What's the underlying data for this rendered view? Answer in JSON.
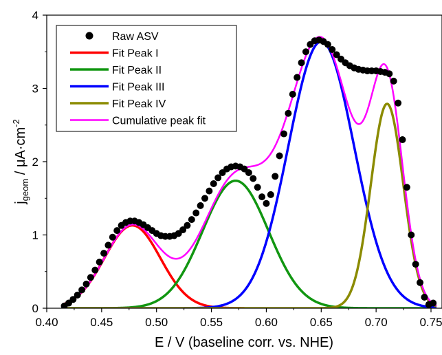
{
  "chart_data": {
    "type": "line",
    "xlabel": "E / V (baseline corr. vs. NHE)",
    "ylabel_parts": {
      "main": "j",
      "sub": "geom",
      "mid": " / μA·cm",
      "sup": "-2"
    },
    "xlim": [
      0.4,
      0.76
    ],
    "ylim": [
      0,
      4
    ],
    "x_ticks": [
      "0.40",
      "0.45",
      "0.50",
      "0.55",
      "0.60",
      "0.65",
      "0.70",
      "0.75"
    ],
    "y_ticks": [
      "0",
      "1",
      "2",
      "3",
      "4"
    ],
    "grid": false,
    "legend_position": "top-left",
    "series": [
      {
        "name": "Raw ASV",
        "kind": "scatter",
        "color": "#000000",
        "x": [
          0.416,
          0.42,
          0.424,
          0.428,
          0.432,
          0.436,
          0.44,
          0.444,
          0.448,
          0.452,
          0.456,
          0.46,
          0.464,
          0.468,
          0.472,
          0.476,
          0.48,
          0.484,
          0.488,
          0.492,
          0.496,
          0.5,
          0.504,
          0.508,
          0.512,
          0.516,
          0.52,
          0.524,
          0.528,
          0.532,
          0.536,
          0.54,
          0.544,
          0.548,
          0.552,
          0.556,
          0.56,
          0.564,
          0.568,
          0.572,
          0.576,
          0.58,
          0.584,
          0.588,
          0.592,
          0.596,
          0.6,
          0.604,
          0.608,
          0.612,
          0.616,
          0.62,
          0.624,
          0.628,
          0.632,
          0.636,
          0.64,
          0.644,
          0.648,
          0.652,
          0.656,
          0.66,
          0.664,
          0.668,
          0.672,
          0.676,
          0.68,
          0.684,
          0.688,
          0.692,
          0.696,
          0.7,
          0.704,
          0.708,
          0.712,
          0.716,
          0.72,
          0.724,
          0.728,
          0.732,
          0.736,
          0.74,
          0.744,
          0.748,
          0.752
        ],
        "y": [
          0.03,
          0.07,
          0.12,
          0.18,
          0.25,
          0.33,
          0.42,
          0.52,
          0.63,
          0.75,
          0.86,
          0.97,
          1.06,
          1.13,
          1.17,
          1.19,
          1.19,
          1.17,
          1.14,
          1.1,
          1.06,
          1.02,
          0.99,
          0.98,
          0.98,
          0.99,
          1.02,
          1.07,
          1.13,
          1.21,
          1.3,
          1.4,
          1.5,
          1.6,
          1.7,
          1.78,
          1.85,
          1.9,
          1.93,
          1.94,
          1.93,
          1.9,
          1.85,
          1.77,
          1.65,
          1.52,
          1.43,
          1.55,
          1.8,
          2.08,
          2.38,
          2.66,
          2.92,
          3.15,
          3.35,
          3.5,
          3.6,
          3.65,
          3.66,
          3.64,
          3.6,
          3.53,
          3.46,
          3.4,
          3.35,
          3.31,
          3.28,
          3.26,
          3.25,
          3.24,
          3.24,
          3.24,
          3.23,
          3.22,
          3.2,
          3.1,
          2.8,
          2.3,
          1.65,
          1.0,
          0.6,
          0.35,
          0.15,
          0.05,
          0.07
        ]
      },
      {
        "name": "Fit Peak I",
        "kind": "gaussian",
        "color": "#ff0000",
        "amp": 1.13,
        "center": 0.478,
        "sigma": 0.0255,
        "xrange": [
          0.416,
          0.58
        ]
      },
      {
        "name": "Fit Peak II",
        "kind": "gaussian",
        "color": "#119611",
        "amp": 1.74,
        "center": 0.572,
        "sigma": 0.03,
        "xrange": [
          0.416,
          0.755
        ]
      },
      {
        "name": "Fit Peak III",
        "kind": "gaussian",
        "color": "#0000ff",
        "amp": 3.64,
        "center": 0.65,
        "sigma": 0.03,
        "xrange": [
          0.416,
          0.755
        ]
      },
      {
        "name": "Fit Peak IV",
        "kind": "gaussian",
        "color": "#8b8b00",
        "amp": 2.79,
        "center": 0.71,
        "sigma": 0.0148,
        "xrange": [
          0.416,
          0.755
        ]
      },
      {
        "name": "Cumulative peak fit",
        "kind": "sum",
        "color": "#ff00ff",
        "xrange": [
          0.416,
          0.755
        ]
      }
    ]
  }
}
